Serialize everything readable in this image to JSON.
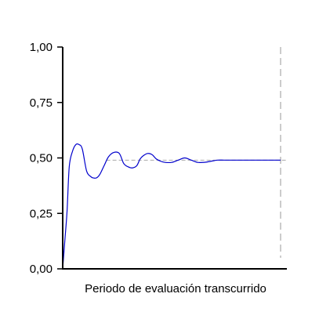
{
  "chart_data": {
    "type": "line",
    "title": "",
    "xlabel": "Periodo de evaluación transcurrido",
    "ylabel": "",
    "ylim": [
      0,
      1
    ],
    "yticks": [
      {
        "value": 0,
        "label": "0,00"
      },
      {
        "value": 0.25,
        "label": "0,25"
      },
      {
        "value": 0.5,
        "label": "0,50"
      },
      {
        "value": 0.75,
        "label": "0,75"
      },
      {
        "value": 1,
        "label": "1,00"
      }
    ],
    "xlim": [
      0,
      1
    ],
    "reference_line": {
      "value": 0.49,
      "style": "dashed",
      "color": "#aaaaaa"
    },
    "end_marker": {
      "x": 1,
      "style": "dashed",
      "color": "#999999"
    },
    "grid": false,
    "legend": "none",
    "series": [
      {
        "color": "#0000cc",
        "x": [
          0,
          0.01,
          0.02,
          0.03,
          0.045,
          0.06,
          0.075,
          0.09,
          0.11,
          0.13,
          0.14,
          0.155,
          0.17,
          0.19,
          0.21,
          0.235,
          0.26,
          0.28,
          0.3,
          0.32,
          0.34,
          0.355,
          0.37,
          0.39,
          0.41,
          0.43,
          0.45,
          0.47,
          0.5,
          0.53,
          0.56,
          0.59,
          0.62,
          0.65,
          0.68,
          0.71,
          0.74,
          0.77,
          0.8,
          0.83,
          0.86,
          0.89,
          0.92,
          0.95,
          0.98,
          1
        ],
        "y": [
          0,
          0.13,
          0.26,
          0.46,
          0.53,
          0.56,
          0.56,
          0.54,
          0.44,
          0.415,
          0.41,
          0.41,
          0.425,
          0.465,
          0.505,
          0.525,
          0.52,
          0.475,
          0.46,
          0.455,
          0.465,
          0.495,
          0.51,
          0.52,
          0.515,
          0.495,
          0.485,
          0.48,
          0.48,
          0.49,
          0.5,
          0.49,
          0.48,
          0.48,
          0.485,
          0.49,
          0.49,
          0.49,
          0.49,
          0.49,
          0.49,
          0.49,
          0.49,
          0.49,
          0.49,
          0.49
        ]
      }
    ]
  }
}
